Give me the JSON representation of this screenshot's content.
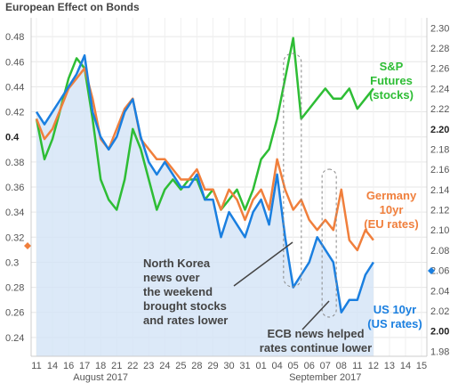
{
  "chart_data": {
    "type": "line",
    "title": "European Effect on Bonds",
    "x_tick_labels": [
      "11",
      "14",
      "16",
      "17",
      "18",
      "21",
      "22",
      "23",
      "24",
      "25",
      "28",
      "29",
      "30",
      "31",
      "01",
      "04",
      "05",
      "06",
      "07",
      "08",
      "11",
      "12",
      "13",
      "14",
      "15"
    ],
    "month_labels": [
      "August 2017",
      "September 2017"
    ],
    "y_left": {
      "min": 0.225,
      "max": 0.495,
      "ticks": [
        "0.48",
        "0.46",
        "0.44",
        "0.42",
        "0.4",
        "0.38",
        "0.36",
        "0.34",
        "0.32",
        "0.3",
        "0.28",
        "0.26",
        "0.24"
      ]
    },
    "y_right": {
      "min": 1.975,
      "max": 2.31,
      "ticks": [
        "2.30",
        "2.28",
        "2.26",
        "2.24",
        "2.22",
        "2.20",
        "2.18",
        "2.16",
        "2.14",
        "2.12",
        "2.10",
        "2.08",
        "2.06",
        "2.04",
        "2.02",
        "2.00",
        "1.98"
      ]
    },
    "x_range": [
      0,
      24
    ],
    "grid": true,
    "colors": {
      "us": "#1a7fe0",
      "germany": "#f07f3c",
      "sp": "#2ebd35",
      "area": "#d3e4f6",
      "highlight": "#888888"
    },
    "series": [
      {
        "name": "S&P Futures (stocks)",
        "axis": "right",
        "x": [
          0,
          0.5,
          1,
          1.5,
          2,
          2.5,
          3,
          3.5,
          4,
          4.5,
          5,
          5.5,
          6,
          6.5,
          7,
          7.5,
          8,
          8.5,
          9,
          9.5,
          10,
          10.5,
          11,
          11.5,
          12,
          12.5,
          13,
          13.5,
          14,
          14.5,
          15,
          15.5,
          16,
          16.5,
          17,
          17.5,
          18,
          18.5,
          19,
          19.5,
          20,
          20.5,
          21
        ],
        "y": [
          2.21,
          2.17,
          2.19,
          2.22,
          2.25,
          2.27,
          2.26,
          2.21,
          2.15,
          2.13,
          2.12,
          2.15,
          2.2,
          2.18,
          2.15,
          2.12,
          2.14,
          2.15,
          2.14,
          2.15,
          2.15,
          2.13,
          2.14,
          2.12,
          2.13,
          2.14,
          2.12,
          2.14,
          2.17,
          2.18,
          2.21,
          2.25,
          2.29,
          2.21,
          2.22,
          2.23,
          2.24,
          2.23,
          2.23,
          2.24,
          2.22,
          2.23,
          2.24
        ]
      },
      {
        "name": "Germany 10yr (EU rates)",
        "axis": "right",
        "x": [
          0,
          0.5,
          1,
          1.5,
          2,
          2.5,
          3,
          3.5,
          4,
          4.5,
          5,
          5.5,
          6,
          6.5,
          7,
          7.5,
          8,
          8.5,
          9,
          9.5,
          10,
          10.5,
          11,
          11.5,
          12,
          12.5,
          13,
          13.5,
          14,
          14.5,
          15,
          15.5,
          16,
          16.5,
          17,
          17.5,
          18,
          18.5,
          19,
          19.5,
          20,
          20.5,
          21
        ],
        "y": [
          2.21,
          2.19,
          2.2,
          2.22,
          2.24,
          2.25,
          2.26,
          2.23,
          2.19,
          2.18,
          2.2,
          2.22,
          2.23,
          2.19,
          2.18,
          2.17,
          2.17,
          2.16,
          2.15,
          2.15,
          2.16,
          2.14,
          2.14,
          2.12,
          2.14,
          2.13,
          2.11,
          2.13,
          2.14,
          2.12,
          2.17,
          2.14,
          2.12,
          2.13,
          2.11,
          2.1,
          2.11,
          2.1,
          2.14,
          2.09,
          2.08,
          2.1,
          2.09
        ]
      },
      {
        "name": "US 10yr (US rates)",
        "axis": "left",
        "x": [
          0,
          0.5,
          1,
          1.5,
          2,
          2.5,
          3,
          3.5,
          4,
          4.5,
          5,
          5.5,
          6,
          6.5,
          7,
          7.5,
          8,
          8.5,
          9,
          9.5,
          10,
          10.5,
          11,
          11.5,
          12,
          12.5,
          13,
          13.5,
          14,
          14.5,
          15,
          15.5,
          16,
          16.5,
          17,
          17.5,
          18,
          18.5,
          19,
          19.5,
          20,
          20.5,
          21
        ],
        "y": [
          0.42,
          0.41,
          0.42,
          0.43,
          0.44,
          0.45,
          0.465,
          0.42,
          0.4,
          0.39,
          0.4,
          0.42,
          0.43,
          0.4,
          0.38,
          0.37,
          0.38,
          0.37,
          0.36,
          0.36,
          0.37,
          0.35,
          0.35,
          0.32,
          0.34,
          0.33,
          0.32,
          0.34,
          0.35,
          0.33,
          0.37,
          0.32,
          0.28,
          0.29,
          0.3,
          0.32,
          0.31,
          0.3,
          0.26,
          0.27,
          0.27,
          0.29,
          0.3
        ]
      }
    ],
    "annotations": [
      {
        "lines": [
          "S&P",
          "Futures",
          "(stocks)"
        ],
        "color": "#2ebd35"
      },
      {
        "lines": [
          "Germany",
          "10yr",
          "(EU rates)"
        ],
        "color": "#f07f3c"
      },
      {
        "lines": [
          "US 10yr",
          "(US rates)"
        ],
        "color": "#1a7fe0"
      },
      {
        "lines": [
          "North Korea",
          "news over",
          "the weekend",
          "brought stocks",
          "and rates lower"
        ],
        "color": "#444444"
      },
      {
        "lines": [
          "ECB news helped",
          "rates continue lower"
        ],
        "color": "#444444"
      }
    ]
  }
}
